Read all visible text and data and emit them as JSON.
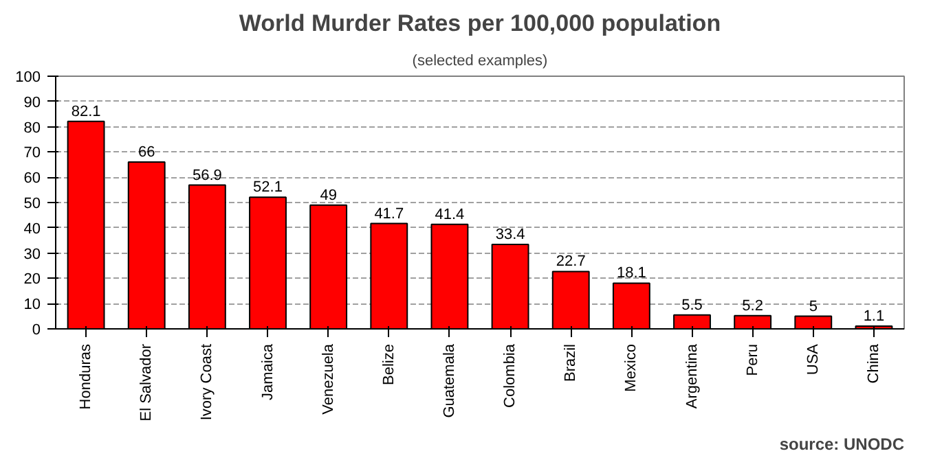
{
  "chart_data": {
    "type": "bar",
    "title": "World Murder Rates per 100,000 population",
    "subtitle": "(selected examples)",
    "categories": [
      "Honduras",
      "El Salvador",
      "Ivory Coast",
      "Jamaica",
      "Venezuela",
      "Belize",
      "Guatemala",
      "Colombia",
      "Brazil",
      "Mexico",
      "Argentina",
      "Peru",
      "USA",
      "China"
    ],
    "values": [
      82.1,
      66,
      56.9,
      52.1,
      49,
      41.7,
      41.4,
      33.4,
      22.7,
      18.1,
      5.5,
      5.2,
      5,
      1.1
    ],
    "color": "#ff0000",
    "ylim": [
      0,
      100
    ],
    "yticks": [
      0,
      10,
      20,
      30,
      40,
      50,
      60,
      70,
      80,
      90,
      100
    ],
    "grid": "y",
    "data_labels": true,
    "annotations": [
      "source: UNODC"
    ]
  }
}
